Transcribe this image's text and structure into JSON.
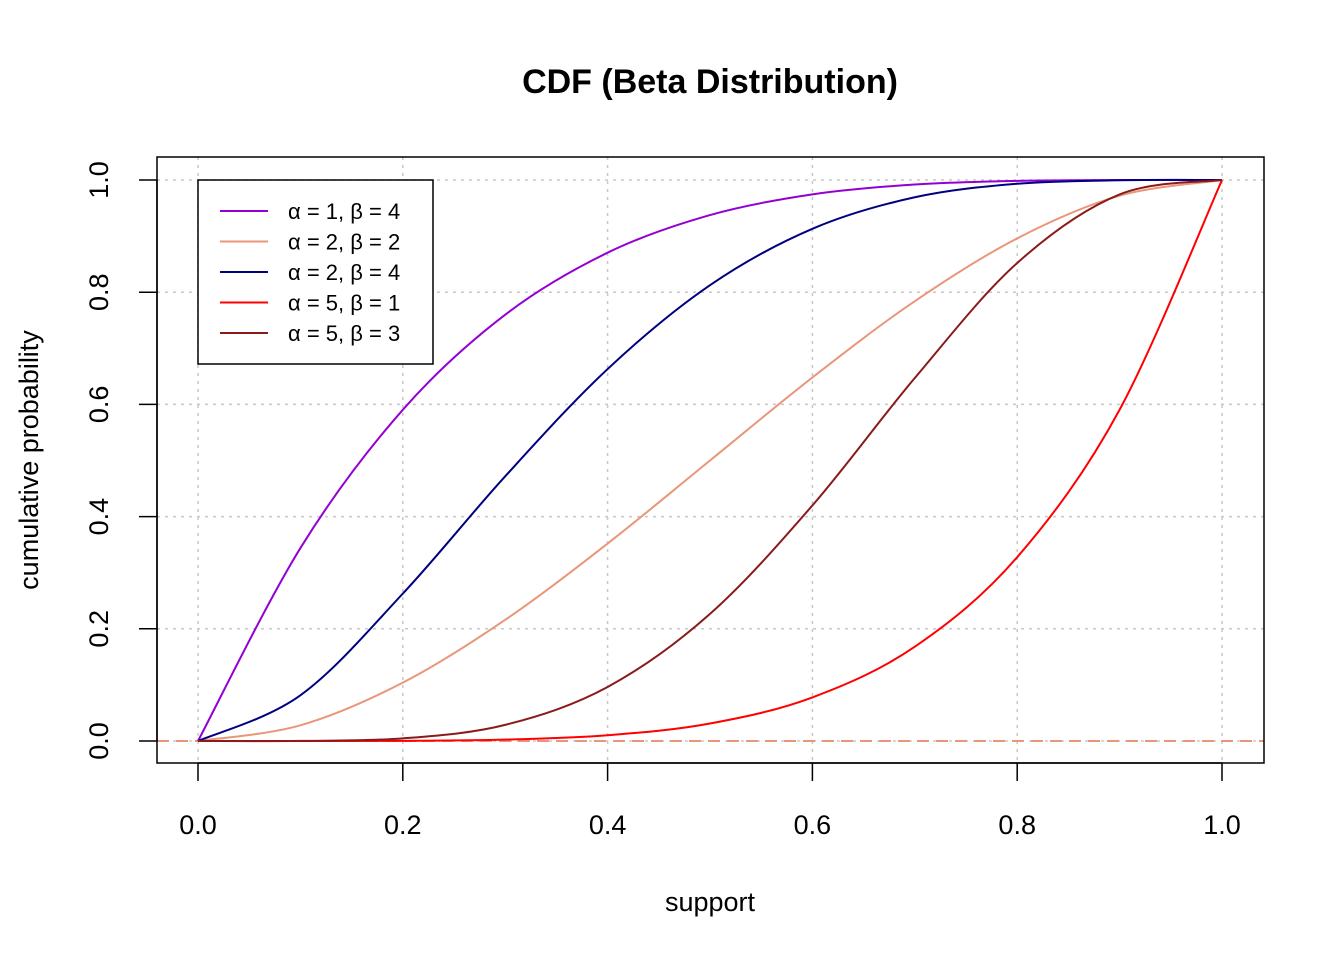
{
  "chart_data": {
    "type": "line",
    "title": "CDF (Beta Distribution)",
    "xlabel": "support",
    "ylabel": "cumulative probability",
    "xlim": [
      0,
      1
    ],
    "ylim": [
      0,
      1
    ],
    "x_ticks": [
      "0.0",
      "0.2",
      "0.4",
      "0.6",
      "0.8",
      "1.0"
    ],
    "y_ticks": [
      "0.0",
      "0.2",
      "0.4",
      "0.6",
      "0.8",
      "1.0"
    ],
    "grid": true,
    "legend_position": "top-left",
    "reference_line": {
      "y": 0,
      "style": "dashed",
      "color": "#e9967a"
    },
    "x": [
      0,
      0.1,
      0.2,
      0.3,
      0.4,
      0.5,
      0.6,
      0.7,
      0.8,
      0.9,
      1
    ],
    "series": [
      {
        "name": "α = 1, β = 4",
        "color": "#9400d3",
        "values": [
          0,
          0.3439,
          0.5904,
          0.7599,
          0.8704,
          0.9375,
          0.9744,
          0.9919,
          0.9984,
          0.9999,
          1
        ]
      },
      {
        "name": "α = 2, β = 2",
        "color": "#e9967a",
        "values": [
          0,
          0.028,
          0.104,
          0.216,
          0.352,
          0.5,
          0.648,
          0.784,
          0.896,
          0.972,
          1
        ]
      },
      {
        "name": "α = 2, β = 4",
        "color": "#000080",
        "values": [
          0,
          0.0815,
          0.2627,
          0.4718,
          0.663,
          0.8125,
          0.913,
          0.9692,
          0.9933,
          0.9995,
          1
        ]
      },
      {
        "name": "α = 5, β = 1",
        "color": "#ff0000",
        "values": [
          0,
          1e-05,
          0.00032,
          0.00243,
          0.01024,
          0.03125,
          0.07776,
          0.16807,
          0.32768,
          0.59049,
          1
        ]
      },
      {
        "name": "α = 5, β = 3",
        "color": "#8b1a1a",
        "values": [
          0,
          0.0002,
          0.0047,
          0.0288,
          0.0963,
          0.2266,
          0.4199,
          0.6471,
          0.852,
          0.9743,
          1
        ]
      }
    ]
  }
}
